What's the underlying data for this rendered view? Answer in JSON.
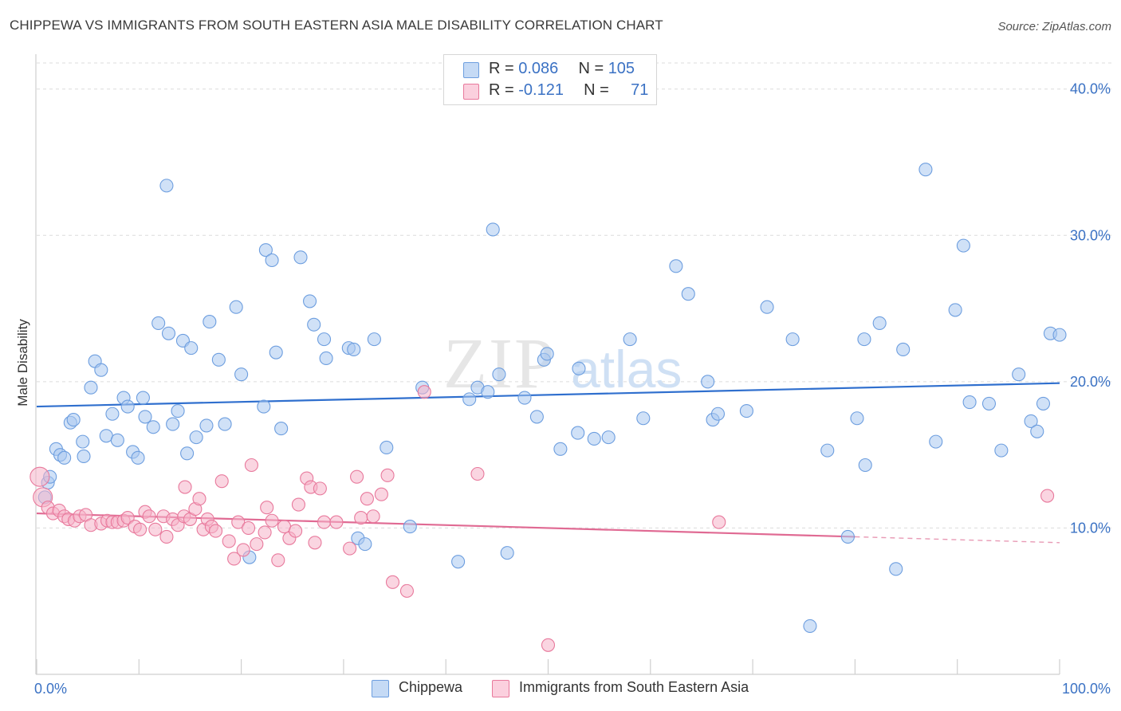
{
  "title": "CHIPPEWA VS IMMIGRANTS FROM SOUTH EASTERN ASIA MALE DISABILITY CORRELATION CHART",
  "source": "Source: ZipAtlas.com",
  "watermark": {
    "zip": "ZIP",
    "atlas": "atlas"
  },
  "legend": {
    "rows": [
      {
        "r_label": "R = ",
        "r_value": "0.086",
        "n_label": "N = ",
        "n_value": "105",
        "color": "#a9c8f0"
      },
      {
        "r_label": "R = ",
        "r_value": "-0.121",
        "n_label": "N = ",
        "n_value": "71",
        "color": "#f6b3c8"
      }
    ]
  },
  "chart_data": {
    "type": "scatter",
    "ylabel": "Male Disability",
    "xlim": [
      0,
      100
    ],
    "ylim": [
      0,
      42
    ],
    "x_tick_labels": [
      "0.0%",
      "100.0%"
    ],
    "y_ticks": [
      10,
      20,
      30,
      40
    ],
    "y_tick_labels": [
      "10.0%",
      "20.0%",
      "30.0%",
      "40.0%"
    ],
    "grid": true,
    "legend_position": "top-center",
    "series": [
      {
        "name": "Chippewa",
        "color": "#6d9edf",
        "fill": "#a9c8f0",
        "trend": {
          "x0": 0,
          "y0": 18.3,
          "x1": 100,
          "y1": 19.9,
          "solid_until": 100
        },
        "points": [
          [
            0.8,
            12.1
          ],
          [
            1.1,
            13.1
          ],
          [
            1.3,
            13.5
          ],
          [
            1.9,
            15.4
          ],
          [
            2.3,
            15.0
          ],
          [
            2.7,
            14.8
          ],
          [
            3.3,
            17.2
          ],
          [
            3.6,
            17.4
          ],
          [
            4.5,
            15.9
          ],
          [
            4.6,
            14.9
          ],
          [
            5.3,
            19.6
          ],
          [
            5.7,
            21.4
          ],
          [
            6.3,
            20.8
          ],
          [
            6.8,
            16.3
          ],
          [
            7.4,
            17.8
          ],
          [
            7.9,
            16.0
          ],
          [
            8.5,
            18.9
          ],
          [
            8.9,
            18.3
          ],
          [
            9.4,
            15.2
          ],
          [
            9.9,
            14.8
          ],
          [
            10.4,
            18.9
          ],
          [
            10.6,
            17.6
          ],
          [
            11.4,
            16.9
          ],
          [
            11.9,
            24.0
          ],
          [
            12.7,
            33.4
          ],
          [
            12.9,
            23.3
          ],
          [
            13.3,
            17.1
          ],
          [
            13.8,
            18.0
          ],
          [
            14.3,
            22.8
          ],
          [
            14.7,
            15.1
          ],
          [
            15.1,
            22.3
          ],
          [
            15.6,
            16.2
          ],
          [
            16.6,
            17.0
          ],
          [
            16.9,
            24.1
          ],
          [
            17.8,
            21.5
          ],
          [
            18.4,
            17.1
          ],
          [
            19.5,
            25.1
          ],
          [
            20.0,
            20.5
          ],
          [
            20.8,
            8.0
          ],
          [
            22.2,
            18.3
          ],
          [
            22.4,
            29.0
          ],
          [
            23.0,
            28.3
          ],
          [
            23.4,
            22.0
          ],
          [
            23.9,
            16.8
          ],
          [
            25.8,
            28.5
          ],
          [
            26.7,
            25.5
          ],
          [
            27.1,
            23.9
          ],
          [
            28.1,
            22.9
          ],
          [
            28.3,
            21.6
          ],
          [
            30.5,
            22.3
          ],
          [
            31.0,
            22.2
          ],
          [
            31.4,
            9.3
          ],
          [
            32.1,
            8.9
          ],
          [
            33.0,
            22.9
          ],
          [
            34.2,
            15.5
          ],
          [
            36.5,
            10.1
          ],
          [
            37.7,
            19.6
          ],
          [
            41.2,
            7.7
          ],
          [
            42.3,
            18.8
          ],
          [
            43.1,
            19.6
          ],
          [
            44.1,
            19.3
          ],
          [
            44.6,
            30.4
          ],
          [
            45.2,
            20.5
          ],
          [
            46.0,
            8.3
          ],
          [
            47.7,
            18.9
          ],
          [
            48.9,
            17.6
          ],
          [
            49.6,
            21.5
          ],
          [
            49.9,
            21.9
          ],
          [
            51.2,
            15.4
          ],
          [
            52.9,
            16.5
          ],
          [
            53.0,
            20.9
          ],
          [
            54.5,
            16.1
          ],
          [
            55.9,
            16.2
          ],
          [
            58.0,
            22.9
          ],
          [
            59.3,
            17.5
          ],
          [
            62.5,
            27.9
          ],
          [
            63.7,
            26.0
          ],
          [
            65.6,
            20.0
          ],
          [
            66.1,
            17.4
          ],
          [
            66.6,
            17.8
          ],
          [
            69.4,
            18.0
          ],
          [
            71.4,
            25.1
          ],
          [
            73.9,
            22.9
          ],
          [
            75.6,
            3.3
          ],
          [
            77.3,
            15.3
          ],
          [
            79.3,
            9.4
          ],
          [
            80.2,
            17.5
          ],
          [
            80.9,
            22.9
          ],
          [
            81.0,
            14.3
          ],
          [
            82.4,
            24.0
          ],
          [
            84.0,
            7.2
          ],
          [
            84.7,
            22.2
          ],
          [
            86.9,
            34.5
          ],
          [
            87.9,
            15.9
          ],
          [
            89.8,
            24.9
          ],
          [
            90.6,
            29.3
          ],
          [
            91.2,
            18.6
          ],
          [
            93.1,
            18.5
          ],
          [
            94.3,
            15.3
          ],
          [
            96.0,
            20.5
          ],
          [
            97.2,
            17.3
          ],
          [
            97.8,
            16.6
          ],
          [
            98.4,
            18.5
          ],
          [
            99.1,
            23.3
          ],
          [
            100.0,
            23.2
          ]
        ]
      },
      {
        "name": "Immigrants from South Eastern Asia",
        "color": "#e8799c",
        "fill": "#f6b3c8",
        "trend": {
          "x0": 0,
          "y0": 11.0,
          "x1": 100,
          "y1": 9.0,
          "solid_until": 80
        },
        "points": [
          [
            0.3,
            13.5
          ],
          [
            0.6,
            12.1
          ],
          [
            1.1,
            11.4
          ],
          [
            1.6,
            11.0
          ],
          [
            2.2,
            11.2
          ],
          [
            2.7,
            10.8
          ],
          [
            3.1,
            10.6
          ],
          [
            3.7,
            10.5
          ],
          [
            4.2,
            10.8
          ],
          [
            4.8,
            10.9
          ],
          [
            5.3,
            10.2
          ],
          [
            6.3,
            10.3
          ],
          [
            6.9,
            10.5
          ],
          [
            7.4,
            10.4
          ],
          [
            7.9,
            10.4
          ],
          [
            8.5,
            10.5
          ],
          [
            8.9,
            10.7
          ],
          [
            9.6,
            10.1
          ],
          [
            10.1,
            9.9
          ],
          [
            10.6,
            11.1
          ],
          [
            11.0,
            10.8
          ],
          [
            11.6,
            9.9
          ],
          [
            12.4,
            10.8
          ],
          [
            12.7,
            9.4
          ],
          [
            13.3,
            10.6
          ],
          [
            13.8,
            10.2
          ],
          [
            14.4,
            10.8
          ],
          [
            14.5,
            12.8
          ],
          [
            15.0,
            10.6
          ],
          [
            15.5,
            11.3
          ],
          [
            15.9,
            12.0
          ],
          [
            16.3,
            9.9
          ],
          [
            16.7,
            10.6
          ],
          [
            17.1,
            10.1
          ],
          [
            17.5,
            9.8
          ],
          [
            18.1,
            13.2
          ],
          [
            18.8,
            9.1
          ],
          [
            19.3,
            7.9
          ],
          [
            19.7,
            10.4
          ],
          [
            20.2,
            8.5
          ],
          [
            20.7,
            10.0
          ],
          [
            21.0,
            14.3
          ],
          [
            21.5,
            8.9
          ],
          [
            22.3,
            9.7
          ],
          [
            22.5,
            11.4
          ],
          [
            23.0,
            10.5
          ],
          [
            23.6,
            7.8
          ],
          [
            24.2,
            10.1
          ],
          [
            24.7,
            9.3
          ],
          [
            25.3,
            9.8
          ],
          [
            25.6,
            11.6
          ],
          [
            26.4,
            13.4
          ],
          [
            26.8,
            12.8
          ],
          [
            27.2,
            9.0
          ],
          [
            27.7,
            12.7
          ],
          [
            28.1,
            10.4
          ],
          [
            29.3,
            10.4
          ],
          [
            30.6,
            8.6
          ],
          [
            31.3,
            13.5
          ],
          [
            31.7,
            10.7
          ],
          [
            32.3,
            12.0
          ],
          [
            32.9,
            10.8
          ],
          [
            33.7,
            12.3
          ],
          [
            34.3,
            13.6
          ],
          [
            34.8,
            6.3
          ],
          [
            36.2,
            5.7
          ],
          [
            37.9,
            19.3
          ],
          [
            43.1,
            13.7
          ],
          [
            50.0,
            2.0
          ],
          [
            66.7,
            10.4
          ],
          [
            98.8,
            12.2
          ]
        ]
      }
    ]
  }
}
